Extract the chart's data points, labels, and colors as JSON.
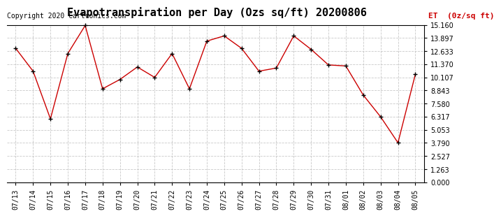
{
  "title": "Evapotranspiration per Day (Ozs sq/ft) 20200806",
  "copyright_text": "Copyright 2020 Cartronics.com",
  "legend_label": "ET  (0z/sq ft)",
  "dates": [
    "07/13",
    "07/14",
    "07/15",
    "07/16",
    "07/17",
    "07/18",
    "07/19",
    "07/20",
    "07/21",
    "07/22",
    "07/23",
    "07/24",
    "07/25",
    "07/26",
    "07/27",
    "07/28",
    "07/29",
    "07/30",
    "07/31",
    "08/01",
    "08/02",
    "08/03",
    "08/04",
    "08/05"
  ],
  "values": [
    12.9,
    10.7,
    6.1,
    12.4,
    15.1,
    9.0,
    9.9,
    11.1,
    10.1,
    12.4,
    9.0,
    13.6,
    14.1,
    12.9,
    10.7,
    11.0,
    14.1,
    12.8,
    11.3,
    11.2,
    8.4,
    6.3,
    3.8,
    10.4
  ],
  "ylim": [
    0.0,
    15.16
  ],
  "yticks": [
    0.0,
    1.263,
    2.527,
    3.79,
    5.053,
    6.317,
    7.58,
    8.843,
    10.107,
    11.37,
    12.633,
    13.897,
    15.16
  ],
  "line_color": "#cc0000",
  "marker": "+",
  "background_color": "#ffffff",
  "grid_color": "#bbbbbb",
  "title_color": "#000000",
  "copyright_color": "#000000",
  "legend_color": "#cc0000",
  "title_fontsize": 11,
  "tick_fontsize": 7,
  "copyright_fontsize": 7,
  "legend_fontsize": 8
}
